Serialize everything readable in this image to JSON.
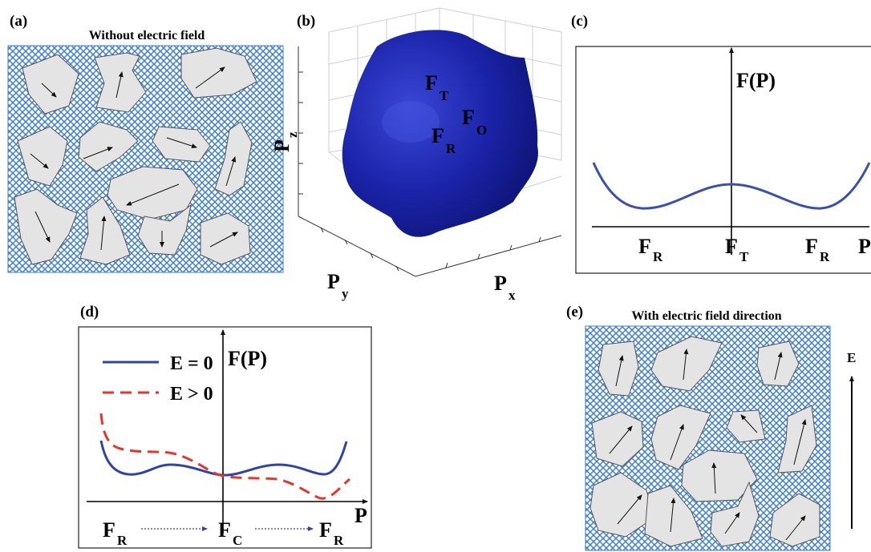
{
  "panels": {
    "a": {
      "label": "(a)",
      "title": "Without electric field"
    },
    "b": {
      "label": "(b)",
      "z_axis": {
        "main": "P",
        "sub": "z"
      },
      "y_axis": {
        "main": "P",
        "sub": "y"
      },
      "x_axis": {
        "main": "P",
        "sub": "x"
      },
      "points": [
        {
          "main": "F",
          "sub": "T"
        },
        {
          "main": "F",
          "sub": "O"
        },
        {
          "main": "F",
          "sub": "R"
        }
      ],
      "surface_color": "#1a23a8"
    },
    "c": {
      "label": "(c)",
      "y_label": "F(P)",
      "x_label": "P",
      "ticks": [
        {
          "main": "F",
          "sub": "R"
        },
        {
          "main": "F",
          "sub": "T"
        },
        {
          "main": "F",
          "sub": "R"
        }
      ],
      "curve_color": "#3a4fb0"
    },
    "d": {
      "label": "(d)",
      "y_label": "F(P)",
      "x_label": "P",
      "legend": [
        {
          "text": "E = 0",
          "color": "#2e44a8",
          "style": "solid"
        },
        {
          "text": "E > 0",
          "color": "#e8342c",
          "style": "dashed"
        }
      ],
      "ticks": [
        {
          "main": "F",
          "sub": "R"
        },
        {
          "main": "F",
          "sub": "C"
        },
        {
          "main": "F",
          "sub": "R"
        }
      ]
    },
    "e": {
      "label": "(e)",
      "title": "With electric field direction",
      "field_label": "E"
    }
  },
  "colors": {
    "mesh": "#3f7fd0",
    "grain_fill": "#e4e4e4",
    "grain_stroke": "#555555"
  }
}
